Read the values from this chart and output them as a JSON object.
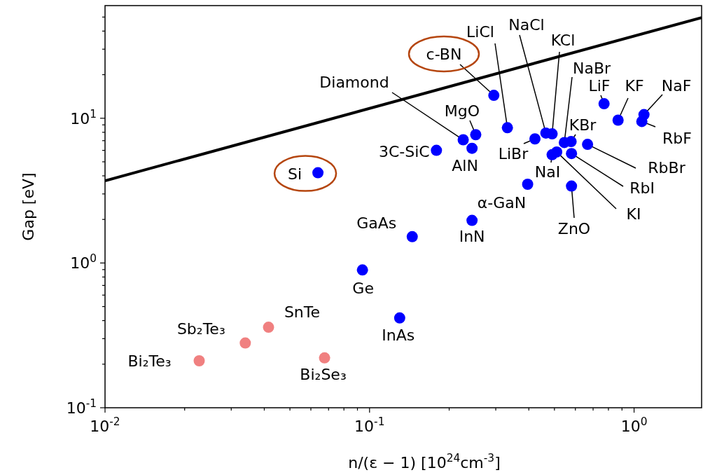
{
  "chart_data": {
    "type": "scatter",
    "xlabel": "n/(ε − 1) [10$^{24}$cm$^{-3}$]",
    "ylabel": "Gap [eV]",
    "log": "xy",
    "marker": "circle",
    "xlim": [
      0.01,
      1.8
    ],
    "ylim": [
      0.1,
      60
    ],
    "xticks": [
      {
        "value": 0.01,
        "label": "10$^{-2}$"
      },
      {
        "value": 0.02,
        "label": null
      },
      {
        "value": 0.03,
        "label": null
      },
      {
        "value": 0.04,
        "label": null
      },
      {
        "value": 0.05,
        "label": null
      },
      {
        "value": 0.06,
        "label": null
      },
      {
        "value": 0.07,
        "label": null
      },
      {
        "value": 0.08,
        "label": null
      },
      {
        "value": 0.09,
        "label": null
      },
      {
        "value": 0.1,
        "label": "10$^{-1}$"
      },
      {
        "value": 0.2,
        "label": null
      },
      {
        "value": 0.3,
        "label": null
      },
      {
        "value": 0.4,
        "label": null
      },
      {
        "value": 0.5,
        "label": null
      },
      {
        "value": 0.6,
        "label": null
      },
      {
        "value": 0.7,
        "label": null
      },
      {
        "value": 0.8,
        "label": null
      },
      {
        "value": 0.9,
        "label": null
      },
      {
        "value": 1,
        "label": "10$^{0}$"
      }
    ],
    "yticks": [
      {
        "value": 0.1,
        "label": "10$^{-1}$"
      },
      {
        "value": 0.2,
        "label": null
      },
      {
        "value": 0.3,
        "label": null
      },
      {
        "value": 0.4,
        "label": null
      },
      {
        "value": 0.5,
        "label": null
      },
      {
        "value": 0.6,
        "label": null
      },
      {
        "value": 0.7,
        "label": null
      },
      {
        "value": 0.8,
        "label": null
      },
      {
        "value": 0.9,
        "label": null
      },
      {
        "value": 1,
        "label": "10$^{0}$"
      },
      {
        "value": 2,
        "label": null
      },
      {
        "value": 3,
        "label": null
      },
      {
        "value": 4,
        "label": null
      },
      {
        "value": 5,
        "label": null
      },
      {
        "value": 6,
        "label": null
      },
      {
        "value": 7,
        "label": null
      },
      {
        "value": 8,
        "label": null
      },
      {
        "value": 9,
        "label": null
      },
      {
        "value": 10,
        "label": "10$^{1}$"
      },
      {
        "value": 20,
        "label": null
      },
      {
        "value": 30,
        "label": null
      },
      {
        "value": 40,
        "label": null
      },
      {
        "value": 50,
        "label": null
      }
    ],
    "series": [
      {
        "type": "line",
        "marker": "none",
        "color": "#000000",
        "x": [
          0.01,
          1.8
        ],
        "values": [
          3.7,
          49.6
        ]
      },
      {
        "color": "#0000ff",
        "x": [
          0.295,
          0.332,
          0.464,
          0.49,
          0.545,
          0.578,
          0.77,
          0.87,
          1.09,
          1.07,
          0.667,
          0.58,
          0.51,
          0.49,
          0.58,
          0.396,
          0.244,
          0.422,
          0.252,
          0.226,
          0.244,
          0.179,
          0.145,
          0.0638,
          0.094,
          0.13
        ],
        "values": [
          14.4,
          8.6,
          7.9,
          7.8,
          6.8,
          6.9,
          12.6,
          9.7,
          10.6,
          9.5,
          6.6,
          5.7,
          5.85,
          5.6,
          3.4,
          3.5,
          1.97,
          7.2,
          7.7,
          7.1,
          6.2,
          6.0,
          1.52,
          4.2,
          0.895,
          0.417
        ]
      },
      {
        "color": "#f08080",
        "x": [
          0.0415,
          0.0339,
          0.0227,
          0.0676
        ],
        "values": [
          0.36,
          0.28,
          0.211,
          0.221
        ]
      }
    ],
    "annotations": [
      {
        "text": "c-BN",
        "x": 0.295,
        "y": 14.4
      },
      {
        "text": "LiCl",
        "x": 0.332,
        "y": 8.6
      },
      {
        "text": "NaCl",
        "x": 0.464,
        "y": 7.9
      },
      {
        "text": "KCl",
        "x": 0.49,
        "y": 7.8
      },
      {
        "text": "NaBr",
        "x": 0.545,
        "y": 6.8
      },
      {
        "text": "KBr",
        "x": 0.578,
        "y": 6.9
      },
      {
        "text": "LiF",
        "x": 0.77,
        "y": 12.6
      },
      {
        "text": "KF",
        "x": 0.87,
        "y": 9.7
      },
      {
        "text": "NaF",
        "x": 1.09,
        "y": 10.6
      },
      {
        "text": "RbF",
        "x": 1.07,
        "y": 9.5
      },
      {
        "text": "RbBr",
        "x": 0.667,
        "y": 6.6
      },
      {
        "text": "RbI",
        "x": 0.58,
        "y": 5.7
      },
      {
        "text": "KI",
        "x": 0.51,
        "y": 5.85
      },
      {
        "text": "NaI",
        "x": 0.49,
        "y": 5.6
      },
      {
        "text": "ZnO",
        "x": 0.58,
        "y": 3.4
      },
      {
        "text": "α-GaN",
        "x": 0.396,
        "y": 3.5
      },
      {
        "text": "InN",
        "x": 0.244,
        "y": 1.97
      },
      {
        "text": "LiBr",
        "x": 0.422,
        "y": 7.2
      },
      {
        "text": "MgO",
        "x": 0.252,
        "y": 7.7
      },
      {
        "text": "Diamond",
        "x": 0.226,
        "y": 7.1
      },
      {
        "text": "AlN",
        "x": 0.244,
        "y": 6.2
      },
      {
        "text": "3C-SiC",
        "x": 0.179,
        "y": 6.0
      },
      {
        "text": "GaAs",
        "x": 0.145,
        "y": 1.52
      },
      {
        "text": "Si",
        "x": 0.0638,
        "y": 4.2
      },
      {
        "text": "Ge",
        "x": 0.094,
        "y": 0.895
      },
      {
        "text": "InAs",
        "x": 0.13,
        "y": 0.417
      },
      {
        "text": "SnTe",
        "x": 0.0415,
        "y": 0.36
      },
      {
        "text": "Sb₂Te₃",
        "x": 0.0339,
        "y": 0.28
      },
      {
        "text": "Bi₂Te₃",
        "x": 0.0227,
        "y": 0.211
      },
      {
        "text": "Bi₂Se₃",
        "x": 0.0676,
        "y": 0.221
      }
    ]
  }
}
